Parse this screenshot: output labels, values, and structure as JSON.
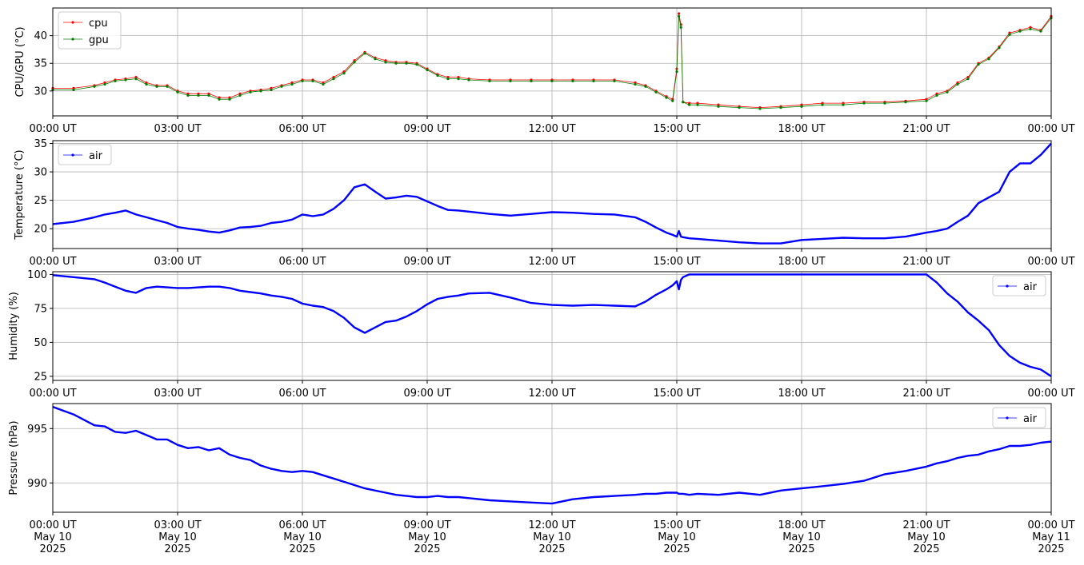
{
  "chart_data": [
    {
      "type": "line",
      "ylabel": "CPU/GPU (°C)",
      "ylim": [
        25.5,
        45
      ],
      "yticks": [
        30,
        35,
        40
      ],
      "xlim": [
        "2025-05-10T00:00Z",
        "2025-05-11T00:00Z"
      ],
      "xticks": [
        "00:00 UT",
        "03:00 UT",
        "06:00 UT",
        "09:00 UT",
        "12:00 UT",
        "15:00 UT",
        "18:00 UT",
        "21:00 UT",
        "00:00 UT"
      ],
      "grid": true,
      "legend": "upper-left",
      "x_hours": [
        0,
        0.5,
        1,
        1.25,
        1.5,
        1.75,
        2,
        2.25,
        2.5,
        2.75,
        3,
        3.25,
        3.5,
        3.75,
        4,
        4.25,
        4.5,
        4.75,
        5,
        5.25,
        5.5,
        5.75,
        6,
        6.25,
        6.5,
        6.75,
        7,
        7.25,
        7.5,
        7.75,
        8,
        8.25,
        8.5,
        8.75,
        9,
        9.25,
        9.5,
        9.75,
        10,
        10.5,
        11,
        11.5,
        12,
        12.5,
        13,
        13.5,
        14,
        14.25,
        14.5,
        14.75,
        14.9,
        15,
        15.05,
        15.1,
        15.15,
        15.3,
        15.5,
        16,
        16.5,
        17,
        17.5,
        18,
        18.5,
        19,
        19.5,
        20,
        20.5,
        21,
        21.25,
        21.5,
        21.75,
        22,
        22.25,
        22.5,
        22.75,
        23,
        23.25,
        23.5,
        23.75,
        24
      ],
      "series": [
        {
          "name": "cpu",
          "color": "#ff0000",
          "values": [
            30.5,
            30.5,
            31,
            31.5,
            32,
            32.2,
            32.5,
            31.5,
            31,
            31,
            30,
            29.5,
            29.5,
            29.5,
            28.8,
            28.8,
            29.5,
            30,
            30.2,
            30.5,
            31,
            31.5,
            32,
            32,
            31.5,
            32.5,
            33.5,
            35.5,
            37,
            36,
            35.5,
            35.2,
            35.2,
            35,
            34,
            33,
            32.5,
            32.5,
            32.2,
            32,
            32,
            32,
            32,
            32,
            32,
            32,
            31.5,
            31,
            30,
            29,
            28.5,
            34,
            44,
            42,
            28,
            27.8,
            27.8,
            27.5,
            27.2,
            27,
            27.2,
            27.5,
            27.8,
            27.8,
            28,
            28,
            28.2,
            28.5,
            29.5,
            30,
            31.5,
            32.5,
            35,
            36,
            38,
            40.5,
            41,
            41.5,
            41,
            43.5
          ]
        },
        {
          "name": "gpu",
          "color": "#008000",
          "values": [
            30.2,
            30.2,
            30.8,
            31.2,
            31.8,
            32,
            32.2,
            31.2,
            30.8,
            30.8,
            29.8,
            29.2,
            29.2,
            29.2,
            28.5,
            28.5,
            29.2,
            29.8,
            30,
            30.2,
            30.8,
            31.2,
            31.8,
            31.8,
            31.2,
            32.2,
            33.2,
            35.2,
            36.8,
            35.8,
            35.2,
            35,
            35,
            34.8,
            33.8,
            32.8,
            32.2,
            32.2,
            32,
            31.8,
            31.8,
            31.8,
            31.8,
            31.8,
            31.8,
            31.8,
            31.2,
            30.8,
            29.8,
            28.8,
            28.2,
            33.5,
            43.5,
            41.5,
            28,
            27.5,
            27.5,
            27.2,
            27,
            26.8,
            27,
            27.2,
            27.5,
            27.5,
            27.8,
            27.8,
            28,
            28.2,
            29.2,
            29.8,
            31.2,
            32.2,
            34.8,
            35.8,
            37.8,
            40.2,
            40.8,
            41.2,
            40.8,
            43.2
          ]
        }
      ]
    },
    {
      "type": "line",
      "ylabel": "Temperature (°C)",
      "ylim": [
        16.5,
        35.5
      ],
      "yticks": [
        20,
        25,
        30,
        35
      ],
      "xlim": [
        "2025-05-10T00:00Z",
        "2025-05-11T00:00Z"
      ],
      "xticks": [
        "00:00 UT",
        "03:00 UT",
        "06:00 UT",
        "09:00 UT",
        "12:00 UT",
        "15:00 UT",
        "18:00 UT",
        "21:00 UT",
        "00:00 UT"
      ],
      "grid": true,
      "legend": "upper-left",
      "x_hours": [
        0,
        0.5,
        1,
        1.25,
        1.5,
        1.75,
        2,
        2.25,
        2.5,
        2.75,
        3,
        3.25,
        3.5,
        3.75,
        4,
        4.25,
        4.5,
        4.75,
        5,
        5.25,
        5.5,
        5.75,
        6,
        6.25,
        6.5,
        6.75,
        7,
        7.25,
        7.5,
        7.75,
        8,
        8.25,
        8.5,
        8.75,
        9,
        9.25,
        9.5,
        9.75,
        10,
        10.5,
        11,
        11.5,
        12,
        12.5,
        13,
        13.5,
        14,
        14.25,
        14.5,
        14.75,
        14.9,
        15,
        15.05,
        15.1,
        15.15,
        15.3,
        15.5,
        16,
        16.5,
        17,
        17.5,
        18,
        18.5,
        19,
        19.5,
        20,
        20.5,
        21,
        21.25,
        21.5,
        21.75,
        22,
        22.25,
        22.5,
        22.75,
        23,
        23.25,
        23.5,
        23.75,
        24
      ],
      "series": [
        {
          "name": "air",
          "color": "#0000ff",
          "values": [
            20.8,
            21.2,
            22,
            22.5,
            22.8,
            23.2,
            22.5,
            22,
            21.5,
            21,
            20.3,
            20,
            19.8,
            19.5,
            19.3,
            19.7,
            20.2,
            20.3,
            20.5,
            21,
            21.2,
            21.6,
            22.5,
            22.2,
            22.5,
            23.5,
            25,
            27.3,
            27.8,
            26.5,
            25.3,
            25.5,
            25.8,
            25.6,
            24.8,
            24,
            23.3,
            23.2,
            23,
            22.6,
            22.3,
            22.6,
            22.9,
            22.8,
            22.6,
            22.5,
            22,
            21.2,
            20.2,
            19.3,
            18.9,
            18.6,
            19.6,
            18.6,
            18.5,
            18.3,
            18.2,
            17.9,
            17.6,
            17.4,
            17.4,
            18,
            18.2,
            18.4,
            18.3,
            18.3,
            18.6,
            19.3,
            19.6,
            20,
            21.2,
            22.3,
            24.5,
            25.5,
            26.5,
            30,
            31.5,
            31.5,
            33,
            35
          ]
        }
      ]
    },
    {
      "type": "line",
      "ylabel": "Humidity (%)",
      "ylim": [
        22,
        102
      ],
      "yticks": [
        25,
        50,
        75,
        100
      ],
      "xlim": [
        "2025-05-10T00:00Z",
        "2025-05-11T00:00Z"
      ],
      "xticks": [
        "00:00 UT",
        "03:00 UT",
        "06:00 UT",
        "09:00 UT",
        "12:00 UT",
        "15:00 UT",
        "18:00 UT",
        "21:00 UT",
        "00:00 UT"
      ],
      "grid": true,
      "legend": "upper-right",
      "x_hours": [
        0,
        0.5,
        1,
        1.25,
        1.5,
        1.75,
        2,
        2.25,
        2.5,
        2.75,
        3,
        3.25,
        3.5,
        3.75,
        4,
        4.25,
        4.5,
        4.75,
        5,
        5.25,
        5.5,
        5.75,
        6,
        6.25,
        6.5,
        6.75,
        7,
        7.25,
        7.5,
        7.75,
        8,
        8.25,
        8.5,
        8.75,
        9,
        9.25,
        9.5,
        9.75,
        10,
        10.5,
        11,
        11.5,
        12,
        12.5,
        13,
        13.5,
        14,
        14.25,
        14.5,
        14.75,
        14.9,
        15,
        15.05,
        15.1,
        15.15,
        15.3,
        15.5,
        16,
        16.5,
        17,
        17.5,
        18,
        18.5,
        19,
        19.5,
        20,
        20.5,
        21,
        21.25,
        21.5,
        21.75,
        22,
        22.25,
        22.5,
        22.75,
        23,
        23.25,
        23.5,
        23.75,
        24
      ],
      "series": [
        {
          "name": "air",
          "color": "#0000ff",
          "values": [
            99.5,
            98,
            96.5,
            94,
            91,
            88,
            86.5,
            90,
            91,
            90.5,
            90,
            90,
            90.5,
            91,
            91,
            90,
            88,
            87,
            86,
            84.5,
            83.5,
            82,
            78.5,
            77,
            76,
            73,
            68,
            61,
            57,
            61,
            65,
            66,
            69,
            73,
            78,
            82,
            83.5,
            84.5,
            86,
            86.5,
            83,
            79,
            77.5,
            77,
            77.5,
            77,
            76.5,
            80,
            85,
            89,
            92,
            95,
            89,
            96,
            98,
            100,
            100,
            100,
            100,
            100,
            100,
            100,
            100,
            100,
            100,
            100,
            100,
            100,
            94,
            86,
            80,
            72,
            66,
            59,
            48,
            40,
            35,
            32,
            30,
            25
          ]
        }
      ]
    },
    {
      "type": "line",
      "ylabel": "Pressure (hPa)",
      "ylim": [
        987.3,
        997.3
      ],
      "yticks": [
        990,
        995
      ],
      "xlim": [
        "2025-05-10T00:00Z",
        "2025-05-11T00:00Z"
      ],
      "xticks": [
        "00:00 UT\nMay 10\n2025",
        "03:00 UT\nMay 10\n2025",
        "06:00 UT\nMay 10\n2025",
        "09:00 UT\nMay 10\n2025",
        "12:00 UT\nMay 10\n2025",
        "15:00 UT\nMay 10\n2025",
        "18:00 UT\nMay 10\n2025",
        "21:00 UT\nMay 10\n2025",
        "00:00 UT\nMay 11\n2025"
      ],
      "grid": true,
      "legend": "upper-right",
      "x_hours": [
        0,
        0.5,
        1,
        1.25,
        1.5,
        1.75,
        2,
        2.25,
        2.5,
        2.75,
        3,
        3.25,
        3.5,
        3.75,
        4,
        4.25,
        4.5,
        4.75,
        5,
        5.25,
        5.5,
        5.75,
        6,
        6.25,
        6.5,
        6.75,
        7,
        7.25,
        7.5,
        7.75,
        8,
        8.25,
        8.5,
        8.75,
        9,
        9.25,
        9.5,
        9.75,
        10,
        10.5,
        11,
        11.5,
        12,
        12.5,
        13,
        13.5,
        14,
        14.25,
        14.5,
        14.75,
        14.9,
        15,
        15.05,
        15.1,
        15.15,
        15.3,
        15.5,
        16,
        16.5,
        17,
        17.5,
        18,
        18.5,
        19,
        19.5,
        20,
        20.5,
        21,
        21.25,
        21.5,
        21.75,
        22,
        22.25,
        22.5,
        22.75,
        23,
        23.25,
        23.5,
        23.75,
        24
      ],
      "series": [
        {
          "name": "air",
          "color": "#0000ff",
          "values": [
            997,
            996.3,
            995.3,
            995.2,
            994.7,
            994.6,
            994.8,
            994.4,
            994,
            994,
            993.5,
            993.2,
            993.3,
            993,
            993.2,
            992.6,
            992.3,
            992.1,
            991.6,
            991.3,
            991.1,
            991,
            991.1,
            991,
            990.7,
            990.4,
            990.1,
            989.8,
            989.5,
            989.3,
            989.1,
            988.9,
            988.8,
            988.7,
            988.7,
            988.8,
            988.7,
            988.7,
            988.6,
            988.4,
            988.3,
            988.2,
            988.1,
            988.5,
            988.7,
            988.8,
            988.9,
            989,
            989,
            989.1,
            989.1,
            989.1,
            989,
            989,
            989,
            988.9,
            989,
            988.9,
            989.1,
            988.9,
            989.3,
            989.5,
            989.7,
            989.9,
            990.2,
            990.8,
            991.1,
            991.5,
            991.8,
            992,
            992.3,
            992.5,
            992.6,
            992.9,
            993.1,
            993.4,
            993.4,
            993.5,
            993.7,
            993.8
          ]
        }
      ]
    }
  ]
}
